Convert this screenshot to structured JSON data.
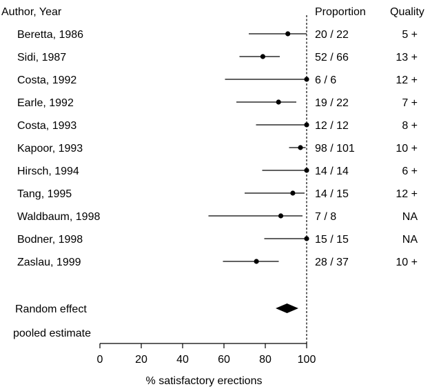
{
  "chart_data": {
    "type": "forest",
    "header": {
      "study": "Author, Year",
      "proportion": "Proportion",
      "quality": "Quality"
    },
    "studies": [
      {
        "label": "Beretta, 1986",
        "point": 90.9,
        "ci": [
          72,
          100
        ],
        "proportion": "20 / 22",
        "quality": "5 +"
      },
      {
        "label": "Sidi, 1987",
        "point": 78.8,
        "ci": [
          67.5,
          87
        ],
        "proportion": "52 / 66",
        "quality": "13 +"
      },
      {
        "label": "Costa, 1992",
        "point": 100,
        "ci": [
          60.5,
          100
        ],
        "proportion": "6 / 6",
        "quality": "12 +"
      },
      {
        "label": "Earle, 1992",
        "point": 86.4,
        "ci": [
          66,
          95
        ],
        "proportion": "19 / 22",
        "quality": "7 +"
      },
      {
        "label": "Costa, 1993",
        "point": 100,
        "ci": [
          75.5,
          100
        ],
        "proportion": "12 / 12",
        "quality": "8 +"
      },
      {
        "label": "Kapoor, 1993",
        "point": 97,
        "ci": [
          91.5,
          99.5
        ],
        "proportion": "98 / 101",
        "quality": "10 +"
      },
      {
        "label": "Hirsch, 1994",
        "point": 100,
        "ci": [
          78.5,
          100
        ],
        "proportion": "14 / 14",
        "quality": "6 +"
      },
      {
        "label": "Tang, 1995",
        "point": 93.3,
        "ci": [
          70,
          99
        ],
        "proportion": "14 / 15",
        "quality": "12 +"
      },
      {
        "label": "Waldbaum, 1998",
        "point": 87.5,
        "ci": [
          52.5,
          98
        ],
        "proportion": "7 / 8",
        "quality": "NA"
      },
      {
        "label": "Bodner, 1998",
        "point": 100,
        "ci": [
          79.5,
          100
        ],
        "proportion": "15 / 15",
        "quality": "NA"
      },
      {
        "label": "Zaslau, 1999",
        "point": 75.7,
        "ci": [
          59.5,
          86.5
        ],
        "proportion": "28 / 37",
        "quality": "10 +"
      }
    ],
    "pooled": {
      "label_line1": "Random effect",
      "label_line2": "pooled estimate",
      "point": 90.5,
      "ci": [
        85,
        96
      ]
    },
    "xaxis": {
      "label": "% satisfactory erections",
      "min": 0,
      "max": 100,
      "ticks": [
        0,
        20,
        40,
        60,
        80,
        100
      ]
    },
    "reference_line": 100
  }
}
